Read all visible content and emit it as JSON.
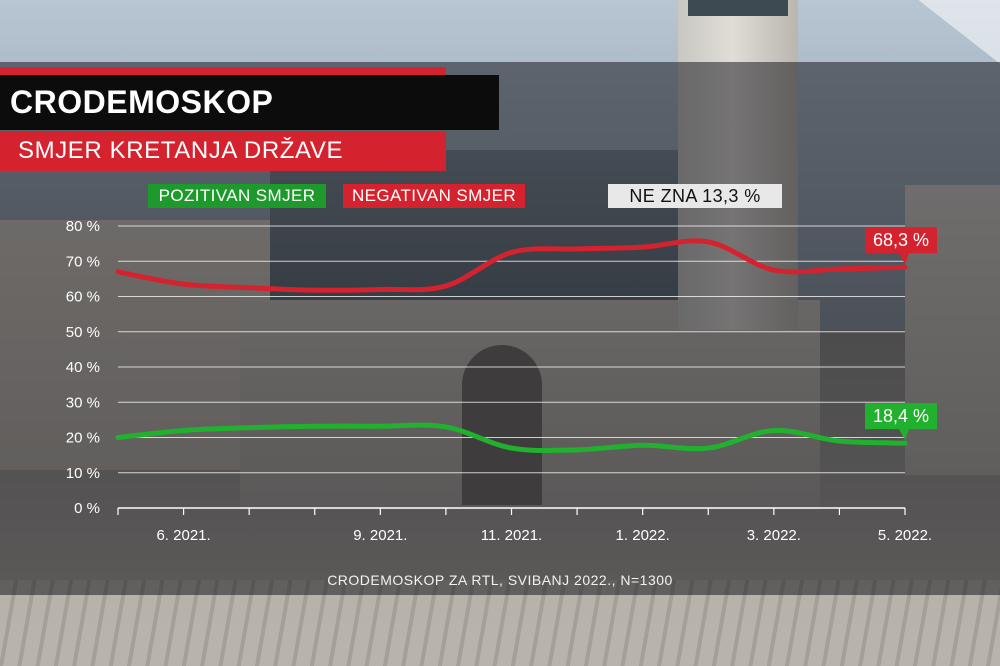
{
  "header": {
    "title": "CRODEMOSKOP",
    "subtitle": "SMJER KRETANJA DRŽAVE"
  },
  "legend": {
    "positive": "POZITIVAN SMJER",
    "negative": "NEGATIVAN SMJER",
    "dont_know": "NE ZNA 13,3 %"
  },
  "source": "CRODEMOSKOP ZA RTL, SVIBANJ 2022., N=1300",
  "colors": {
    "positive": "#22b02f",
    "negative": "#d4232f",
    "dont_know_bg": "#e8e8e8"
  },
  "chart_data": {
    "type": "line",
    "title": "SMJER KRETANJA DRŽAVE",
    "xlabel": "",
    "ylabel": "",
    "ylim": [
      0,
      80
    ],
    "yticks": [
      0,
      10,
      20,
      30,
      40,
      50,
      60,
      70,
      80
    ],
    "ytick_labels": [
      "0 %",
      "10 %",
      "20 %",
      "30 %",
      "40 %",
      "50 %",
      "60 %",
      "70 %",
      "80 %"
    ],
    "grid": true,
    "x_labels": [
      "6. 2021.",
      "9. 2021.",
      "11. 2021.",
      "1. 2022.",
      "3. 2022.",
      "5. 2022."
    ],
    "x": [
      "5. 2021.",
      "6. 2021.",
      "7. 2021.",
      "8. 2021.",
      "9. 2021.",
      "10. 2021.",
      "11. 2021.",
      "12. 2021.",
      "1. 2022.",
      "2. 2022.",
      "3. 2022.",
      "4. 2022.",
      "5. 2022."
    ],
    "series": [
      {
        "name": "NEGATIVAN SMJER",
        "color": "#d4232f",
        "values": [
          67.0,
          63.5,
          62.5,
          61.8,
          62.0,
          63.0,
          72.5,
          73.5,
          74.0,
          75.5,
          67.5,
          67.8,
          68.3
        ]
      },
      {
        "name": "POZITIVAN SMJER",
        "color": "#22b02f",
        "values": [
          20.0,
          22.0,
          22.8,
          23.2,
          23.2,
          23.0,
          17.0,
          16.5,
          17.8,
          17.0,
          22.0,
          19.0,
          18.4
        ]
      }
    ],
    "end_labels": [
      "68,3 %",
      "18,4 %"
    ],
    "legend_position": "top"
  }
}
